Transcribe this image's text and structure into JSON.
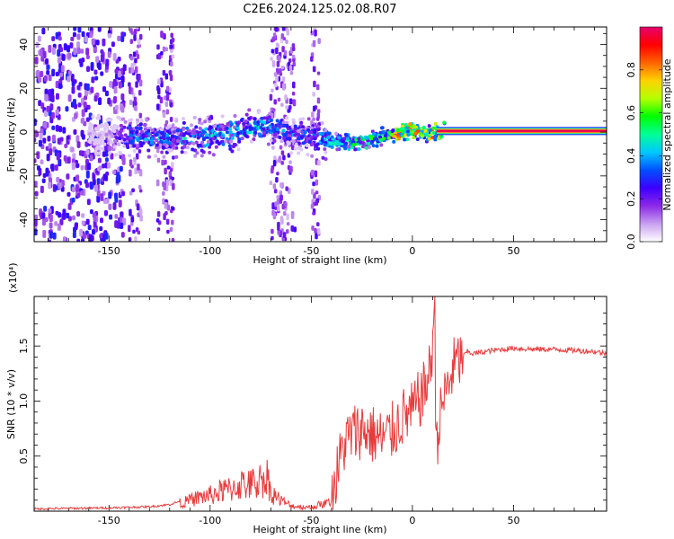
{
  "title": "C2E6.2024.125.02.08.R07",
  "chart_data": [
    {
      "type": "heatmap",
      "xlabel": "Height of straight line (km)",
      "ylabel": "Frequency (Hz)",
      "xlim": [
        -187,
        96
      ],
      "ylim": [
        -50,
        48
      ],
      "xticks": [
        -150,
        -100,
        -50,
        0,
        50
      ],
      "yticks": [
        -40,
        -20,
        0,
        20,
        40
      ],
      "colorbar": {
        "label": "Normalized spectral amplitude",
        "range": [
          0,
          1
        ],
        "ticks": [
          "0.0",
          "0.2",
          "0.4",
          "0.6",
          "0.8"
        ],
        "colors": [
          "#ffffff",
          "#c8a0f0",
          "#8c28e6",
          "#3c00ff",
          "#0050ff",
          "#00c8ff",
          "#00ff96",
          "#00ff00",
          "#b4ff00",
          "#ffd200",
          "#ff6400",
          "#ff0000",
          "#e6006e"
        ]
      },
      "ridge": {
        "x": [
          -187,
          -150,
          -140,
          -120,
          -100,
          -80,
          -70,
          -60,
          -50,
          -40,
          -30,
          -20,
          -10,
          -5,
          0,
          5,
          8,
          12,
          16,
          96
        ],
        "freq": [
          0,
          -1,
          -2,
          -3,
          -2,
          2,
          3,
          -1,
          -2,
          -4,
          -5,
          -3,
          -1,
          0,
          1,
          0,
          -1,
          0,
          0.5,
          0.5
        ],
        "amplitude": [
          0.05,
          0.1,
          0.4,
          0.4,
          0.45,
          0.45,
          0.4,
          0.35,
          0.35,
          0.45,
          0.5,
          0.55,
          0.7,
          0.8,
          0.8,
          0.75,
          0.75,
          0.8,
          0.85,
          0.9
        ]
      }
    },
    {
      "type": "line",
      "xlabel": "Height of straight line (km)",
      "ylabel": "SNR (10 * v/v)",
      "yscale_label": "(x10⁴)",
      "xlim": [
        -187,
        96
      ],
      "ylim": [
        0,
        1.95
      ],
      "xticks": [
        -150,
        -100,
        -50,
        0,
        50
      ],
      "yticks": [
        0.5,
        1.0,
        1.5
      ],
      "ytick_labels": [
        "0.5",
        "1.0",
        "1.5"
      ],
      "series": [
        {
          "color": "#e83c3c",
          "x": [
            -187,
            -170,
            -150,
            -130,
            -120,
            -110,
            -105,
            -100,
            -95,
            -90,
            -85,
            -80,
            -75,
            -72,
            -70,
            -65,
            -60,
            -55,
            -50,
            -45,
            -40,
            -36,
            -34,
            -30,
            -25,
            -20,
            -15,
            -10,
            -5,
            0,
            3,
            6,
            9,
            10,
            11,
            11.5,
            12,
            13,
            15,
            18,
            20,
            22,
            25,
            27,
            30,
            40,
            50,
            60,
            70,
            80,
            90,
            96
          ],
          "y": [
            0.02,
            0.025,
            0.03,
            0.04,
            0.06,
            0.12,
            0.16,
            0.18,
            0.22,
            0.25,
            0.3,
            0.3,
            0.35,
            0.4,
            0.22,
            0.12,
            0.06,
            0.05,
            0.04,
            0.08,
            0.1,
            0.45,
            0.6,
            0.7,
            0.75,
            0.7,
            0.65,
            0.72,
            0.85,
            0.9,
            1.0,
            1.1,
            1.3,
            1.55,
            1.95,
            0.9,
            0.65,
            0.75,
            1.0,
            1.15,
            1.3,
            1.35,
            1.4,
            1.45,
            1.43,
            1.46,
            1.48,
            1.47,
            1.47,
            1.46,
            1.45,
            1.43
          ]
        }
      ]
    }
  ]
}
